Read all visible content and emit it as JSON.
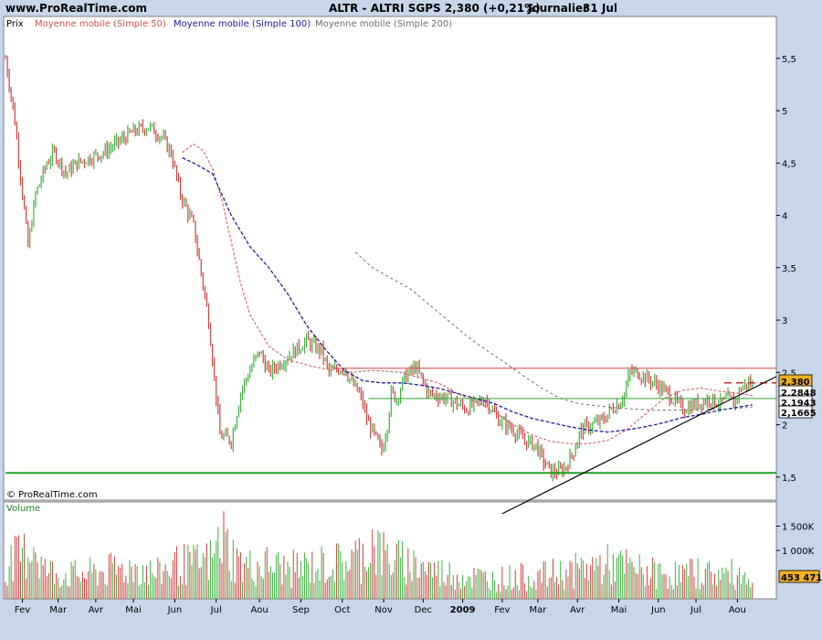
{
  "header": {
    "site": "www.ProRealTime.com",
    "instrument": "ALTR - ALTRI SGPS   2,380 (+0,21%)",
    "period": "Journalier",
    "date": "31 Jul"
  },
  "price_panel": {
    "title": "Prix",
    "watermark": "© ProRealTime.com"
  },
  "legend": [
    {
      "label": "Moyenne mobile (Simple 50)",
      "color": "#d05050"
    },
    {
      "label": "Moyenne mobile (Simple 100)",
      "color": "#2020a0"
    },
    {
      "label": "Moyenne mobile (Simple 200)",
      "color": "#707070"
    }
  ],
  "volume_panel": {
    "title": "Volume",
    "last_value_label": "453 471"
  },
  "value_tags": [
    {
      "text": "2,380",
      "fill": "#f0b020",
      "color": "#000000"
    },
    {
      "text": "2,2848",
      "fill": "#ffffff",
      "color": "#d05050"
    },
    {
      "text": "2,1943",
      "fill": "#ffffff",
      "color": "#2020a0"
    },
    {
      "text": "2,1665",
      "fill": "#ffffff",
      "color": "#707070"
    }
  ],
  "chart_data": [
    {
      "type": "line",
      "title": "ALTR - ALTRI SGPS",
      "x_labels": [
        "Fev",
        "Mar",
        "Avr",
        "Mai",
        "Jun",
        "Jul",
        "Aou",
        "Sep",
        "Oct",
        "Nov",
        "Dec",
        "2009",
        "Fev",
        "Mar",
        "Avr",
        "Mai",
        "Jun",
        "Jul",
        "Aou"
      ],
      "x_label_index": [
        9,
        28,
        48,
        68,
        90,
        112,
        135,
        157,
        179,
        201,
        222,
        243,
        264,
        283,
        304,
        326,
        347,
        367,
        389
      ],
      "y_ticks": [
        1.5,
        2,
        2.5,
        3,
        3.5,
        4,
        4.5,
        5,
        5.5
      ],
      "y_tick_labels": [
        "1,5",
        "2",
        "2,5",
        "3",
        "3,5",
        "4",
        "4,5",
        "5",
        "5,5"
      ],
      "ylim": [
        1.28,
        5.9
      ],
      "n_days": 398,
      "price_series": {
        "name": "Prix",
        "anchors_index": [
          0,
          5,
          12,
          16,
          22,
          26,
          32,
          38,
          45,
          52,
          60,
          68,
          76,
          83,
          88,
          93,
          100,
          108,
          114,
          120,
          125,
          127,
          132,
          135,
          140,
          150,
          160,
          168,
          172,
          180,
          184,
          188,
          190,
          192,
          200,
          203,
          205,
          208,
          212,
          218,
          225,
          235,
          245,
          255,
          262,
          270,
          276,
          282,
          286,
          290,
          294,
          298,
          302,
          306,
          312,
          318,
          322,
          326,
          329,
          332,
          336,
          340,
          345,
          352,
          360,
          368,
          374,
          380,
          384,
          387,
          391,
          395,
          397
        ],
        "anchors_value": [
          5.5,
          4.9,
          3.7,
          4.2,
          4.5,
          4.6,
          4.4,
          4.5,
          4.55,
          4.6,
          4.7,
          4.8,
          4.85,
          4.75,
          4.6,
          4.2,
          3.9,
          3.0,
          1.9,
          1.85,
          2.3,
          2.4,
          2.6,
          2.7,
          2.5,
          2.65,
          2.8,
          2.7,
          2.5,
          2.55,
          2.4,
          2.3,
          2.2,
          2.05,
          1.75,
          2.0,
          2.3,
          2.25,
          2.45,
          2.55,
          2.3,
          2.25,
          2.15,
          2.25,
          2.05,
          1.95,
          1.85,
          1.8,
          1.65,
          1.55,
          1.55,
          1.6,
          1.75,
          1.95,
          2.0,
          2.05,
          2.15,
          2.2,
          2.3,
          2.5,
          2.5,
          2.45,
          2.4,
          2.3,
          2.15,
          2.2,
          2.25,
          2.2,
          2.25,
          2.2,
          2.35,
          2.4,
          2.38
        ]
      },
      "series": [
        {
          "name": "Moyenne mobile (Simple 50)",
          "anchors_index": [
            94,
            100,
            105,
            110,
            115,
            120,
            125,
            130,
            140,
            150,
            165,
            175,
            185,
            195,
            210,
            220,
            230,
            240,
            250,
            260,
            270,
            280,
            290,
            300,
            310,
            320,
            330,
            340,
            350,
            360,
            370,
            380,
            390,
            397
          ],
          "anchors_value": [
            4.6,
            4.68,
            4.62,
            4.45,
            4.15,
            3.75,
            3.35,
            3.05,
            2.75,
            2.62,
            2.55,
            2.52,
            2.5,
            2.52,
            2.5,
            2.45,
            2.4,
            2.3,
            2.22,
            2.12,
            2.0,
            1.9,
            1.84,
            1.82,
            1.82,
            1.85,
            1.95,
            2.1,
            2.25,
            2.33,
            2.35,
            2.32,
            2.3,
            2.28
          ]
        },
        {
          "name": "Moyenne mobile (Simple 100)",
          "anchors_index": [
            94,
            100,
            110,
            120,
            130,
            140,
            150,
            160,
            170,
            180,
            190,
            200,
            210,
            220,
            230,
            240,
            250,
            260,
            270,
            280,
            290,
            300,
            310,
            320,
            330,
            340,
            350,
            360,
            370,
            380,
            390,
            397
          ],
          "anchors_value": [
            4.55,
            4.5,
            4.4,
            4.0,
            3.7,
            3.5,
            3.25,
            2.95,
            2.72,
            2.52,
            2.42,
            2.4,
            2.4,
            2.38,
            2.35,
            2.3,
            2.25,
            2.2,
            2.12,
            2.06,
            2.02,
            1.98,
            1.95,
            1.93,
            1.95,
            1.98,
            2.02,
            2.07,
            2.1,
            2.14,
            2.17,
            2.19
          ]
        },
        {
          "name": "Moyenne mobile (Simple 200)",
          "anchors_index": [
            186,
            195,
            205,
            215,
            225,
            235,
            245,
            255,
            265,
            275,
            285,
            295,
            305,
            315,
            325,
            335,
            345,
            355,
            365,
            375,
            385,
            397
          ],
          "anchors_value": [
            3.65,
            3.5,
            3.4,
            3.3,
            3.15,
            3.0,
            2.85,
            2.72,
            2.6,
            2.47,
            2.35,
            2.25,
            2.2,
            2.18,
            2.16,
            2.15,
            2.14,
            2.14,
            2.14,
            2.15,
            2.15,
            2.17
          ]
        }
      ],
      "horizontal_lines": [
        {
          "value": 2.54,
          "color": "#d04040",
          "from_index": 174,
          "to_index": 420
        },
        {
          "value": 2.25,
          "color": "#30a030",
          "from_index": 193,
          "to_index": 420
        },
        {
          "value": 1.54,
          "color": "#20a020",
          "from_index": 0,
          "to_index": 420
        },
        {
          "value": 2.4,
          "color": "#c03030",
          "dashed": true,
          "from_index": 382,
          "to_index": 415
        }
      ],
      "trendline": {
        "from_index": 264,
        "from_value": 1.15,
        "to_index": 420,
        "to_value": 2.46
      }
    },
    {
      "type": "bar",
      "title": "Volume",
      "y_ticks": [
        1000000,
        1500000
      ],
      "y_tick_labels": [
        "1 000K",
        "1 500K"
      ],
      "ylim": [
        0,
        2000000
      ],
      "last_value": 453471,
      "volume_anchors_index": [
        0,
        10,
        15,
        20,
        30,
        40,
        50,
        60,
        70,
        80,
        90,
        100,
        110,
        115,
        120,
        125,
        130,
        140,
        150,
        160,
        170,
        180,
        190,
        195,
        200,
        210,
        220,
        230,
        240,
        250,
        260,
        270,
        280,
        290,
        300,
        310,
        320,
        330,
        340,
        350,
        360,
        370,
        380,
        390,
        397
      ],
      "volume_anchors_value": [
        700000,
        900000,
        1200000,
        600000,
        500000,
        500000,
        550000,
        600000,
        650000,
        500000,
        700000,
        700000,
        800000,
        1300000,
        900000,
        700000,
        650000,
        700000,
        600000,
        650000,
        700000,
        750000,
        900000,
        1200000,
        900000,
        750000,
        700000,
        550000,
        500000,
        450000,
        400000,
        450000,
        450000,
        500000,
        550000,
        650000,
        700000,
        650000,
        550000,
        500000,
        500000,
        550000,
        500000,
        500000,
        450000
      ]
    }
  ]
}
